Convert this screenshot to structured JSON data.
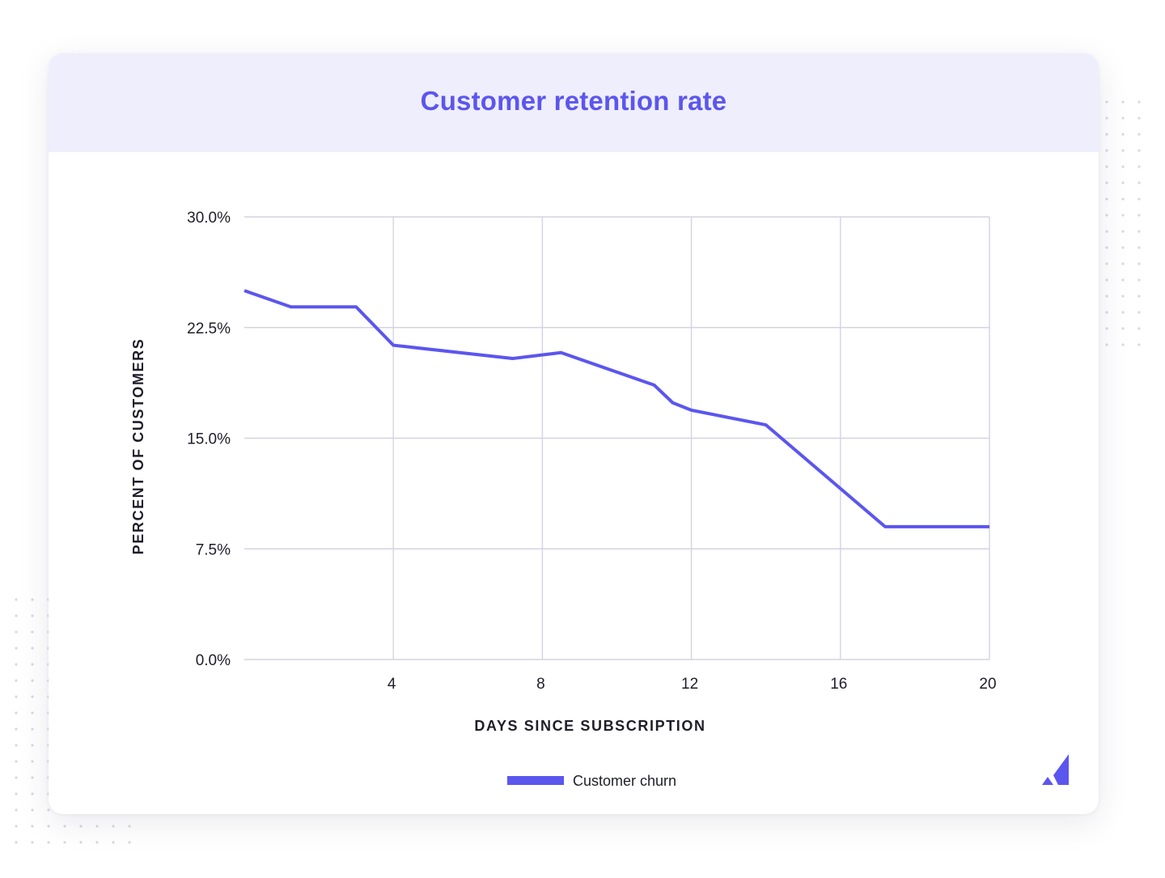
{
  "chart_data": {
    "type": "line",
    "title": "Customer retention rate",
    "xlabel": "DAYS SINCE SUBSCRIPTION",
    "ylabel": "PERCENT OF CUSTOMERS",
    "xlim": [
      0,
      20
    ],
    "ylim": [
      0,
      30
    ],
    "x_ticks": [
      4,
      8,
      12,
      16,
      20
    ],
    "y_ticks": [
      0,
      7.5,
      15,
      22.5,
      30
    ],
    "y_tick_labels": [
      "0.0%",
      "7.5%",
      "15.0%",
      "22.5%",
      "30.0%"
    ],
    "grid": true,
    "legend": "bottom-center",
    "series": [
      {
        "name": "Customer churn",
        "color": "#5b56ee",
        "x": [
          0,
          1.25,
          3,
          4,
          7.2,
          8.5,
          11,
          11.5,
          12,
          14,
          17.2,
          20
        ],
        "y": [
          25.0,
          23.9,
          23.9,
          21.3,
          20.4,
          20.8,
          18.6,
          17.4,
          16.9,
          15.9,
          9.0,
          9.0
        ]
      }
    ]
  },
  "colors": {
    "accent": "#5b56ee",
    "header_bg": "#efeefc",
    "grid": "#d3d3e3",
    "text": "#1e1e2a"
  },
  "brand": {
    "logo_icon": "brand-logo-icon"
  }
}
